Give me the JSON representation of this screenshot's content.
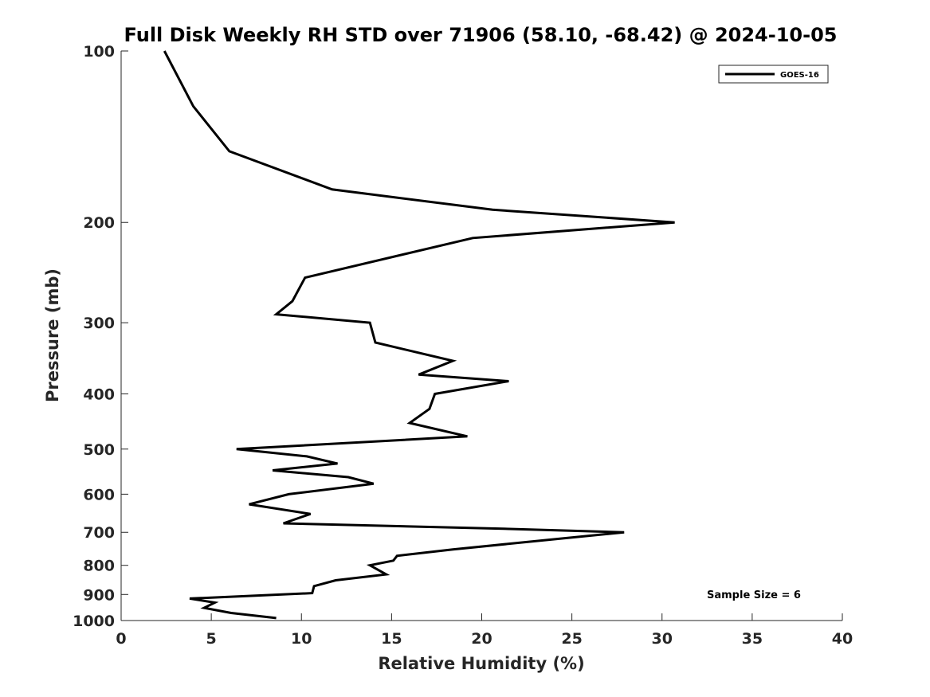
{
  "chart_data": {
    "type": "line",
    "title": "Full Disk Weekly RH STD over 71906 (58.10, -68.42) @ 2024-10-05",
    "xlabel": "Relative Humidity (%)",
    "ylabel": "Pressure (mb)",
    "xlim": [
      0,
      40
    ],
    "ylim": [
      100,
      1000
    ],
    "yscale": "log",
    "y_reversed": true,
    "xticks": [
      "0",
      "5",
      "10",
      "15",
      "20",
      "25",
      "30",
      "35",
      "40"
    ],
    "yticks": [
      "100",
      "200",
      "300",
      "400",
      "500",
      "600",
      "700",
      "800",
      "900",
      "1000"
    ],
    "grid": false,
    "legend_position": "top-right",
    "annotation": "Sample Size = 6",
    "series": [
      {
        "name": "GOES-16",
        "color": "#000000",
        "points": [
          [
            2.4,
            100
          ],
          [
            4.0,
            125
          ],
          [
            6.0,
            150
          ],
          [
            11.7,
            175
          ],
          [
            20.6,
            190
          ],
          [
            30.7,
            200
          ],
          [
            19.5,
            213
          ],
          [
            10.2,
            250
          ],
          [
            9.5,
            275
          ],
          [
            8.6,
            290
          ],
          [
            13.8,
            300
          ],
          [
            14.1,
            325
          ],
          [
            18.4,
            350
          ],
          [
            16.5,
            370
          ],
          [
            21.5,
            380
          ],
          [
            17.4,
            400
          ],
          [
            17.1,
            425
          ],
          [
            16.0,
            450
          ],
          [
            19.2,
            475
          ],
          [
            6.4,
            500
          ],
          [
            10.3,
            515
          ],
          [
            12.0,
            530
          ],
          [
            8.4,
            545
          ],
          [
            12.6,
            560
          ],
          [
            14.0,
            575
          ],
          [
            9.3,
            600
          ],
          [
            7.1,
            625
          ],
          [
            10.5,
            650
          ],
          [
            9.0,
            675
          ],
          [
            21.2,
            690
          ],
          [
            27.9,
            700
          ],
          [
            25.0,
            715
          ],
          [
            18.4,
            750
          ],
          [
            15.3,
            770
          ],
          [
            15.1,
            785
          ],
          [
            13.8,
            800
          ],
          [
            14.7,
            830
          ],
          [
            11.9,
            850
          ],
          [
            10.7,
            870
          ],
          [
            10.6,
            895
          ],
          [
            3.8,
            915
          ],
          [
            5.2,
            930
          ],
          [
            4.6,
            950
          ],
          [
            6.1,
            970
          ],
          [
            8.6,
            990
          ]
        ]
      }
    ]
  }
}
